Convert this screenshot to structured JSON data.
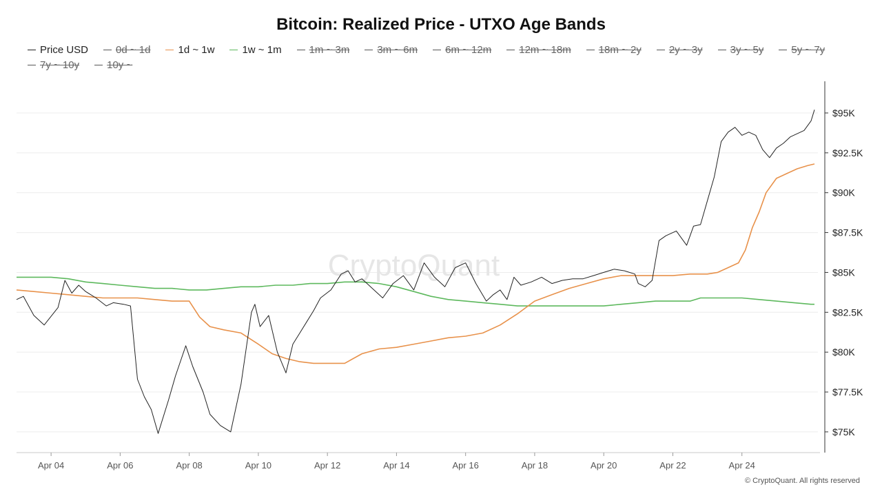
{
  "chart_data": {
    "type": "line",
    "title": "Bitcoin: Realized Price - UTXO Age Bands",
    "ylim": [
      73700,
      96900
    ],
    "xlim": [
      0,
      23.2
    ],
    "y_ticks": [
      75000,
      77500,
      80000,
      82500,
      85000,
      87500,
      90000,
      92500,
      95000
    ],
    "y_tick_labels": [
      "$75K",
      "$77.5K",
      "$80K",
      "$82.5K",
      "$85K",
      "$87.5K",
      "$90K",
      "$92.5K",
      "$95K"
    ],
    "x_ticks": [
      1,
      3,
      5,
      7,
      9,
      11,
      13,
      15,
      17,
      19,
      21
    ],
    "x_tick_labels": [
      "Apr 04",
      "Apr 06",
      "Apr 08",
      "Apr 10",
      "Apr 12",
      "Apr 14",
      "Apr 16",
      "Apr 18",
      "Apr 20",
      "Apr 22",
      "Apr 24"
    ],
    "watermark": "CryptoQuant",
    "legend": [
      {
        "name": "Price USD",
        "color": "#222222",
        "active": true
      },
      {
        "name": "0d ~ 1d",
        "color": "#555555",
        "active": false
      },
      {
        "name": "1d ~ 1w",
        "color": "#e8914a",
        "active": true
      },
      {
        "name": "1w ~ 1m",
        "color": "#5cb85c",
        "active": true
      },
      {
        "name": "1m ~ 3m",
        "color": "#555555",
        "active": false
      },
      {
        "name": "3m ~ 6m",
        "color": "#555555",
        "active": false
      },
      {
        "name": "6m ~ 12m",
        "color": "#555555",
        "active": false
      },
      {
        "name": "12m ~ 18m",
        "color": "#555555",
        "active": false
      },
      {
        "name": "18m ~ 2y",
        "color": "#555555",
        "active": false
      },
      {
        "name": "2y ~ 3y",
        "color": "#555555",
        "active": false
      },
      {
        "name": "3y ~ 5y",
        "color": "#555555",
        "active": false
      },
      {
        "name": "5y ~ 7y",
        "color": "#555555",
        "active": false
      },
      {
        "name": "7y ~ 10y",
        "color": "#555555",
        "active": false
      },
      {
        "name": "10y ~",
        "color": "#555555",
        "active": false
      }
    ],
    "series": [
      {
        "name": "Price USD",
        "color": "#222222",
        "x": [
          0,
          0.2,
          0.5,
          0.8,
          1.2,
          1.4,
          1.6,
          1.8,
          2.0,
          2.3,
          2.6,
          2.8,
          3.1,
          3.3,
          3.5,
          3.7,
          3.9,
          4.1,
          4.4,
          4.6,
          4.9,
          5.1,
          5.4,
          5.6,
          5.9,
          6.2,
          6.5,
          6.8,
          6.9,
          7.05,
          7.3,
          7.55,
          7.8,
          8.0,
          8.2,
          8.4,
          8.6,
          8.8,
          9.1,
          9.4,
          9.6,
          9.8,
          10.0,
          10.3,
          10.6,
          10.9,
          11.2,
          11.5,
          11.8,
          12.1,
          12.4,
          12.7,
          13.0,
          13.3,
          13.6,
          13.8,
          14.0,
          14.2,
          14.4,
          14.6,
          14.9,
          15.2,
          15.5,
          15.8,
          16.1,
          16.4,
          16.7,
          17.0,
          17.3,
          17.6,
          17.9,
          18.0,
          18.2,
          18.4,
          18.6,
          18.8,
          19.1,
          19.4,
          19.6,
          19.8,
          20.0,
          20.2,
          20.4,
          20.6,
          20.8,
          21.0,
          21.2,
          21.4,
          21.6,
          21.8,
          22.0,
          22.2,
          22.4,
          22.6,
          22.8,
          23.0,
          23.1
        ],
        "values": [
          83300,
          83500,
          82300,
          81700,
          82800,
          84500,
          83700,
          84200,
          83800,
          83400,
          82900,
          83100,
          83000,
          82900,
          78300,
          77200,
          76400,
          74900,
          77000,
          78500,
          80400,
          79100,
          77500,
          76100,
          75400,
          75000,
          78000,
          82500,
          83000,
          81600,
          82300,
          80000,
          78700,
          80500,
          81200,
          81900,
          82600,
          83400,
          83900,
          84900,
          85100,
          84400,
          84600,
          84000,
          83400,
          84300,
          84800,
          83900,
          85600,
          84700,
          84100,
          85300,
          85600,
          84300,
          83200,
          83600,
          83900,
          83300,
          84700,
          84200,
          84400,
          84700,
          84300,
          84500,
          84600,
          84600,
          84800,
          85000,
          85200,
          85100,
          84900,
          84300,
          84100,
          84500,
          87000,
          87300,
          87600,
          86700,
          87900,
          88000,
          89500,
          91000,
          93200,
          93800,
          94100,
          93600,
          93800,
          93600,
          92700,
          92200,
          92800,
          93100,
          93500,
          93700,
          93900,
          94500,
          95200
        ]
      },
      {
        "name": "1d ~ 1w",
        "color": "#e8914a",
        "x": [
          0,
          0.5,
          1.0,
          1.5,
          2.0,
          2.5,
          3.0,
          3.5,
          4.0,
          4.5,
          5.0,
          5.3,
          5.6,
          6.0,
          6.5,
          7.0,
          7.4,
          7.8,
          8.2,
          8.6,
          9.0,
          9.5,
          10.0,
          10.5,
          11.0,
          11.5,
          12.0,
          12.5,
          13.0,
          13.5,
          14.0,
          14.5,
          15.0,
          15.5,
          16.0,
          16.5,
          17.0,
          17.5,
          18.0,
          18.5,
          19.0,
          19.5,
          20.0,
          20.3,
          20.6,
          20.9,
          21.1,
          21.3,
          21.5,
          21.7,
          22.0,
          22.3,
          22.6,
          22.9,
          23.1
        ],
        "values": [
          83900,
          83800,
          83700,
          83600,
          83500,
          83400,
          83400,
          83400,
          83300,
          83200,
          83200,
          82200,
          81600,
          81400,
          81200,
          80500,
          79900,
          79600,
          79400,
          79300,
          79300,
          79300,
          79900,
          80200,
          80300,
          80500,
          80700,
          80900,
          81000,
          81200,
          81700,
          82400,
          83200,
          83600,
          84000,
          84300,
          84600,
          84800,
          84800,
          84800,
          84800,
          84900,
          84900,
          85000,
          85300,
          85600,
          86400,
          87800,
          88800,
          90000,
          90900,
          91200,
          91500,
          91700,
          91800
        ]
      },
      {
        "name": "1w ~ 1m",
        "color": "#5cb85c",
        "x": [
          0,
          0.5,
          1.0,
          1.5,
          2.0,
          2.5,
          3.0,
          3.5,
          4.0,
          4.5,
          5.0,
          5.5,
          6.0,
          6.5,
          7.0,
          7.5,
          8.0,
          8.5,
          9.0,
          9.5,
          10.0,
          10.5,
          11.0,
          11.5,
          12.0,
          12.5,
          13.0,
          13.5,
          14.0,
          14.5,
          15.0,
          15.5,
          16.0,
          16.5,
          17.0,
          17.5,
          18.0,
          18.5,
          19.0,
          19.5,
          19.8,
          20.0,
          20.5,
          21.0,
          21.5,
          22.0,
          22.5,
          23.0,
          23.1
        ],
        "values": [
          84700,
          84700,
          84700,
          84600,
          84400,
          84300,
          84200,
          84100,
          84000,
          84000,
          83900,
          83900,
          84000,
          84100,
          84100,
          84200,
          84200,
          84300,
          84300,
          84400,
          84400,
          84300,
          84100,
          83800,
          83500,
          83300,
          83200,
          83100,
          83000,
          82900,
          82900,
          82900,
          82900,
          82900,
          82900,
          83000,
          83100,
          83200,
          83200,
          83200,
          83400,
          83400,
          83400,
          83400,
          83300,
          83200,
          83100,
          83000,
          83000
        ]
      }
    ]
  },
  "copyright": "© CryptoQuant. All rights reserved"
}
